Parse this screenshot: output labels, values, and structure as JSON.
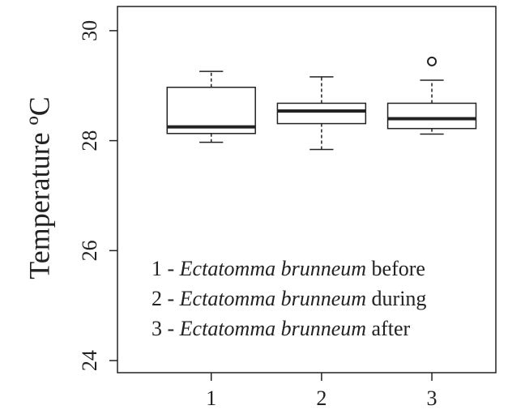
{
  "chart_data": {
    "type": "box",
    "y_label": "Temperature ºC",
    "x": [
      1,
      2,
      3
    ],
    "xlim": [
      0.15,
      3.58
    ],
    "ylim": [
      23.78,
      30.44
    ],
    "yticks": [
      24,
      26,
      28,
      30
    ],
    "boxes": [
      {
        "min": 27.97,
        "q1": 28.13,
        "median": 28.25,
        "q3": 28.97,
        "max": 29.26,
        "outliers": []
      },
      {
        "min": 27.84,
        "q1": 28.31,
        "median": 28.54,
        "q3": 28.68,
        "max": 29.16,
        "outliers": []
      },
      {
        "min": 28.12,
        "q1": 28.22,
        "median": 28.4,
        "q3": 28.68,
        "max": 29.1,
        "outliers": [
          29.44
        ]
      }
    ],
    "color": "#222222",
    "legend": [
      {
        "prefix": "1 - ",
        "species": "Ectatomma brunneum",
        "suffix": " before"
      },
      {
        "prefix": "2 - ",
        "species": "Ectatomma brunneum",
        "suffix": " during"
      },
      {
        "prefix": "3 - ",
        "species": "Ectatomma brunneum",
        "suffix": " after"
      }
    ]
  }
}
